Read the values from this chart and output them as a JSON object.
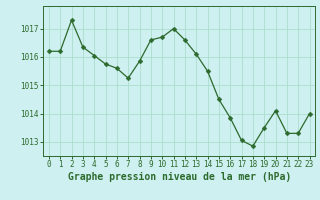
{
  "x": [
    0,
    1,
    2,
    3,
    4,
    5,
    6,
    7,
    8,
    9,
    10,
    11,
    12,
    13,
    14,
    15,
    16,
    17,
    18,
    19,
    20,
    21,
    22,
    23
  ],
  "y": [
    1016.2,
    1016.2,
    1017.3,
    1016.35,
    1016.05,
    1015.75,
    1015.6,
    1015.25,
    1015.85,
    1016.6,
    1016.7,
    1017.0,
    1016.6,
    1016.1,
    1015.5,
    1014.5,
    1013.85,
    1013.05,
    1012.85,
    1013.5,
    1014.1,
    1013.3,
    1013.3,
    1014.0
  ],
  "line_color": "#2d6a2d",
  "marker": "D",
  "marker_size": 2.5,
  "background_color": "#cef0f0",
  "grid_color": "#aaddcc",
  "ylabel_ticks": [
    1013,
    1014,
    1015,
    1016,
    1017
  ],
  "xlabel_ticks": [
    0,
    1,
    2,
    3,
    4,
    5,
    6,
    7,
    8,
    9,
    10,
    11,
    12,
    13,
    14,
    15,
    16,
    17,
    18,
    19,
    20,
    21,
    22,
    23
  ],
  "xlabel": "Graphe pression niveau de la mer (hPa)",
  "xlabel_fontsize": 7.0,
  "tick_fontsize": 5.5,
  "ylim": [
    1012.5,
    1017.8
  ],
  "xlim": [
    -0.5,
    23.5
  ],
  "tick_color": "#2d6a2d",
  "axis_color": "#2d6a2d",
  "label_color": "#2d6a2d"
}
